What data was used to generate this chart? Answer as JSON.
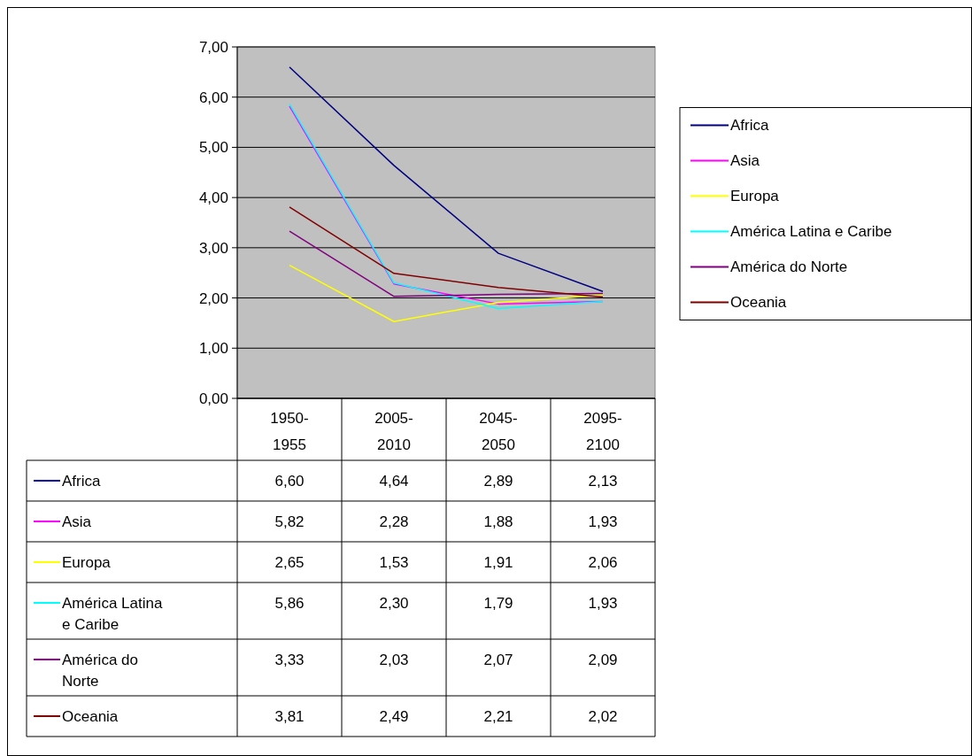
{
  "chart_data": {
    "type": "line",
    "categories": [
      "1950-1955",
      "2005-2010",
      "2045-2050",
      "2095-2100"
    ],
    "series": [
      {
        "name": "Africa",
        "color": "#000080",
        "values": [
          6.6,
          4.64,
          2.89,
          2.13
        ],
        "value_labels": [
          "6,60",
          "4,64",
          "2,89",
          "2,13"
        ]
      },
      {
        "name": "Asia",
        "color": "#ff00ff",
        "values": [
          5.82,
          2.28,
          1.88,
          1.93
        ],
        "value_labels": [
          "5,82",
          "2,28",
          "1,88",
          "1,93"
        ]
      },
      {
        "name": "Europa",
        "color": "#ffff00",
        "values": [
          2.65,
          1.53,
          1.91,
          2.06
        ],
        "value_labels": [
          "2,65",
          "1,53",
          "1,91",
          "2,06"
        ]
      },
      {
        "name": "América Latina e Caribe",
        "color": "#00ffff",
        "values": [
          5.86,
          2.3,
          1.79,
          1.93
        ],
        "value_labels": [
          "5,86",
          "2,30",
          "1,79",
          "1,93"
        ]
      },
      {
        "name": "América do Norte",
        "color": "#800080",
        "values": [
          3.33,
          2.03,
          2.07,
          2.09
        ],
        "value_labels": [
          "3,33",
          "2,03",
          "2,07",
          "2,09"
        ]
      },
      {
        "name": "Oceania",
        "color": "#800000",
        "values": [
          3.81,
          2.49,
          2.21,
          2.02
        ],
        "value_labels": [
          "3,81",
          "2,49",
          "2,21",
          "2,02"
        ]
      }
    ],
    "ylim": [
      0,
      7
    ],
    "yticks": [
      {
        "value": 0,
        "label": "0,00"
      },
      {
        "value": 1,
        "label": "1,00"
      },
      {
        "value": 2,
        "label": "2,00"
      },
      {
        "value": 3,
        "label": "3,00"
      },
      {
        "value": 4,
        "label": "4,00"
      },
      {
        "value": 5,
        "label": "5,00"
      },
      {
        "value": 6,
        "label": "6,00"
      },
      {
        "value": 7,
        "label": "7,00"
      }
    ],
    "grid": "y",
    "legend": "right",
    "marker": "none",
    "line_style": "solid"
  }
}
